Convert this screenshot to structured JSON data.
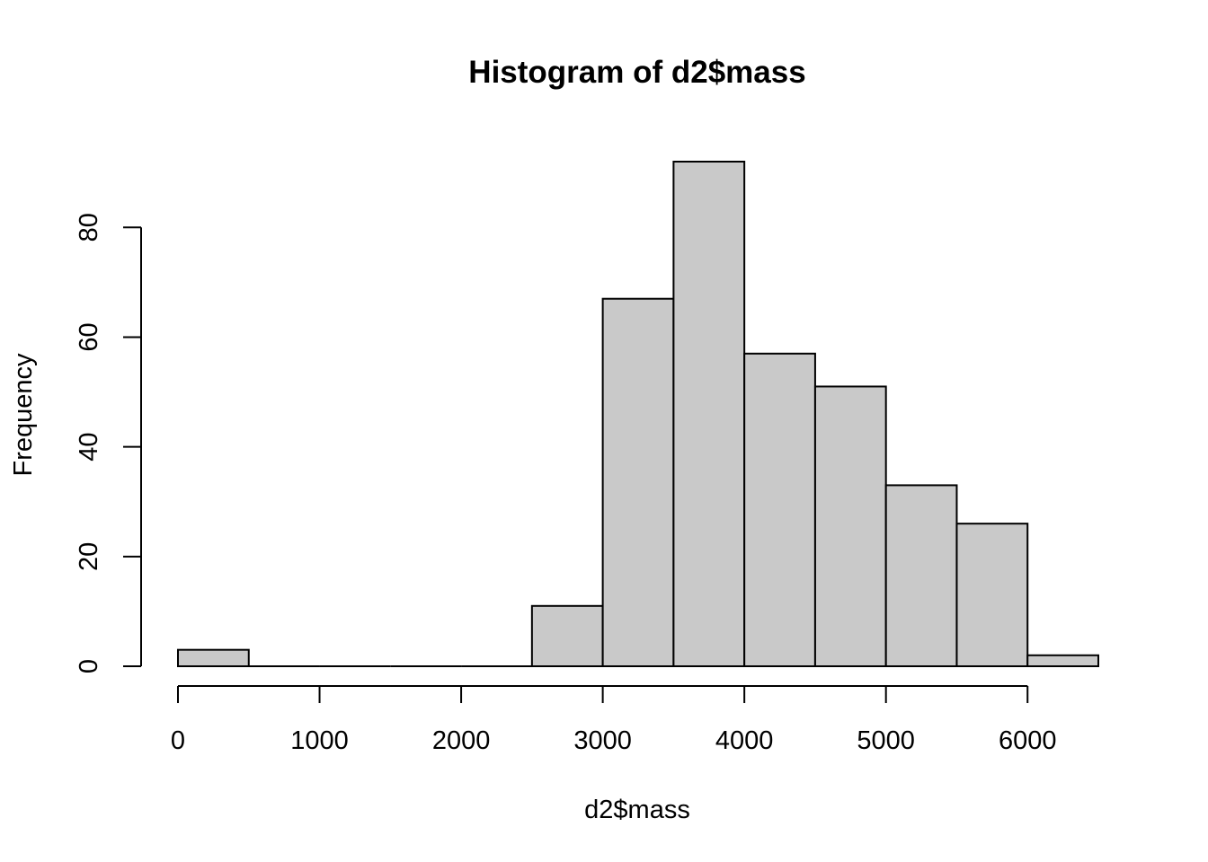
{
  "chart_data": {
    "type": "bar",
    "title": "Histogram of d2$mass",
    "xlabel": "d2$mass",
    "ylabel": "Frequency",
    "bin_edges": [
      0,
      500,
      1000,
      1500,
      2000,
      2500,
      3000,
      3500,
      4000,
      4500,
      5000,
      5500,
      6000,
      6500
    ],
    "values": [
      3,
      0,
      0,
      0,
      0,
      11,
      67,
      92,
      57,
      51,
      33,
      26,
      2
    ],
    "xlim": [
      0,
      6500
    ],
    "ylim": [
      0,
      92
    ],
    "x_ticks": [
      "0",
      "1000",
      "2000",
      "3000",
      "4000",
      "5000",
      "6000"
    ],
    "y_ticks": [
      "0",
      "20",
      "40",
      "60",
      "80"
    ],
    "grid": false,
    "colors": {
      "bar_fill": "#c9c9c9",
      "bar_stroke": "#000000"
    }
  }
}
